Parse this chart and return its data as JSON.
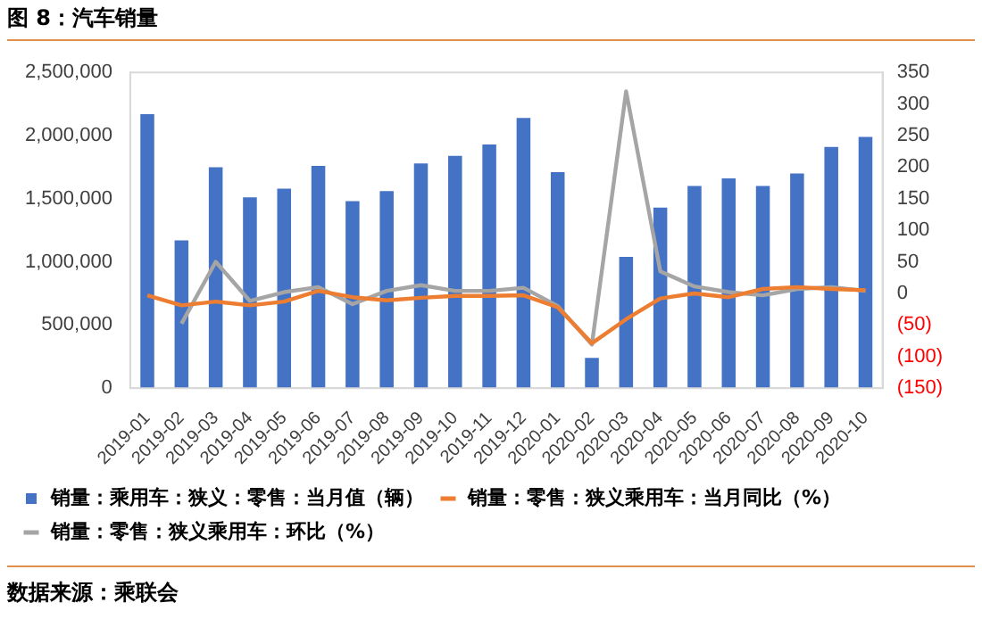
{
  "chart_data": {
    "type": "bar",
    "title": "图 8：汽车销量",
    "categories": [
      "2019-01",
      "2019-02",
      "2019-03",
      "2019-04",
      "2019-05",
      "2019-06",
      "2019-07",
      "2019-08",
      "2019-09",
      "2019-10",
      "2019-11",
      "2019-12",
      "2020-01",
      "2020-02",
      "2020-03",
      "2020-04",
      "2020-05",
      "2020-06",
      "2020-07",
      "2020-08",
      "2020-09",
      "2020-10"
    ],
    "series": [
      {
        "name": "销量：乘用车：狭义：零售：当月值（辆）",
        "color": "#4472c4",
        "values": [
          2170000,
          1170000,
          1750000,
          1510000,
          1580000,
          1760000,
          1480000,
          1560000,
          1780000,
          1840000,
          1930000,
          2140000,
          1710000,
          240000,
          1040000,
          1430000,
          1600000,
          1660000,
          1600000,
          1700000,
          1910000,
          1990000
        ]
      },
      {
        "name": "销量：零售：狭义乘用车：当月同比（%）",
        "type": "line",
        "axis": "y2",
        "color": "#ed7d31",
        "values": [
          -3,
          -19,
          -13,
          -19,
          -13,
          4,
          -6,
          -11,
          -7,
          -4,
          -4,
          -3,
          -22,
          -79,
          -41,
          -8,
          0,
          -6,
          7,
          10,
          7,
          5
        ]
      },
      {
        "name": "销量：零售：狭义乘用车：环比（%）",
        "type": "line",
        "axis": "y2",
        "color": "#a5a5a5",
        "values": [
          null,
          -48,
          50,
          -12,
          2,
          10,
          -17,
          4,
          13,
          4,
          4,
          9,
          -20,
          -81,
          320,
          35,
          11,
          2,
          -3,
          7,
          10,
          4
        ]
      }
    ],
    "ylim": [
      0,
      2500000
    ],
    "yticks": [
      0,
      {
        "value": 500000,
        "label": "500,000"
      },
      {
        "value": 1000000,
        "label": "1,000,000"
      },
      {
        "value": 1500000,
        "label": "1,500,000"
      },
      {
        "value": 2000000,
        "label": "2,000,000"
      },
      {
        "value": 2500000,
        "label": "2,500,000"
      }
    ],
    "y2lim": [
      -150,
      350
    ],
    "y2ticks": [
      {
        "value": -150,
        "label": "(150)"
      },
      {
        "value": -100,
        "label": "(100)"
      },
      {
        "value": -50,
        "label": "(50)"
      },
      0,
      50,
      100,
      150,
      200,
      250,
      300,
      350
    ],
    "grid": false,
    "legend": "bottom",
    "marker": "none",
    "line_style": "solid",
    "annotations": [
      "数据来源：乘联会"
    ]
  }
}
